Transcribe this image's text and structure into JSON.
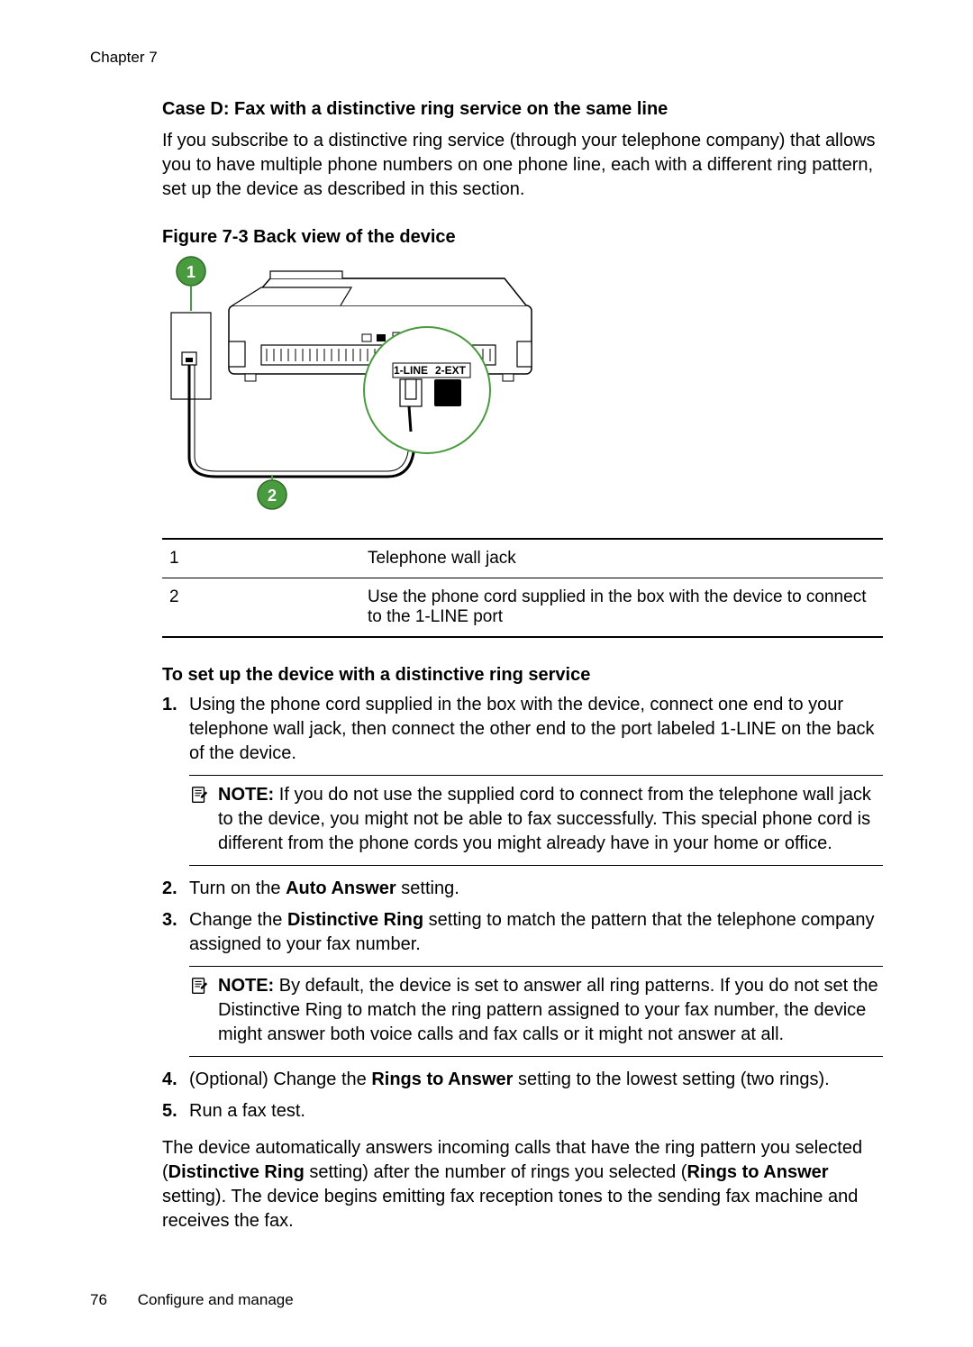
{
  "chapter_label": "Chapter 7",
  "heading": "Case D: Fax with a distinctive ring service on the same line",
  "intro_paragraph": "If you subscribe to a distinctive ring service (through your telephone company) that allows you to have multiple phone numbers on one phone line, each with a different ring pattern, set up the device as described in this section.",
  "figure": {
    "caption": "Figure 7-3 Back view of the device",
    "callouts": {
      "one": "1",
      "two": "2"
    },
    "port_labels": {
      "line": "1-LINE",
      "ext": "2-EXT"
    },
    "style": {
      "callout_fill": "#4a9b3f",
      "callout_stroke": "#2f6b28",
      "ring_stroke": "#4a9b3f",
      "device_stroke": "#000000",
      "bg": "#ffffff",
      "line_width_thin": 1.2,
      "line_width_outline": 3,
      "line_width_ring": 2
    }
  },
  "legend": {
    "rows": [
      {
        "num": "1",
        "text": "Telephone wall jack"
      },
      {
        "num": "2",
        "text": "Use the phone cord supplied in the box with the device to connect to the 1-LINE port"
      }
    ]
  },
  "setup_heading": "To set up the device with a distinctive ring service",
  "steps": [
    {
      "num": "1.",
      "segments": [
        {
          "t": "Using the phone cord supplied in the box with the device, connect one end to your telephone wall jack, then connect the other end to the port labeled 1-LINE on the back of the device."
        }
      ],
      "note": {
        "label": "NOTE:",
        "segments": [
          {
            "t": "  If you do not use the supplied cord to connect from the telephone wall jack to the device, you might not be able to fax successfully. This special phone cord is different from the phone cords you might already have in your home or office."
          }
        ]
      }
    },
    {
      "num": "2.",
      "segments": [
        {
          "t": "Turn on the "
        },
        {
          "t": "Auto Answer",
          "b": true
        },
        {
          "t": " setting."
        }
      ]
    },
    {
      "num": "3.",
      "segments": [
        {
          "t": "Change the "
        },
        {
          "t": "Distinctive Ring",
          "b": true
        },
        {
          "t": " setting to match the pattern that the telephone company assigned to your fax number."
        }
      ],
      "note": {
        "label": "NOTE:",
        "segments": [
          {
            "t": "  By default, the device is set to answer all ring patterns. If you do not set the "
          },
          {
            "t": "Distinctive Ring",
            "b": true
          },
          {
            "t": " to match the ring pattern assigned to your fax number, the device might answer both voice calls and fax calls or it might not answer at all."
          }
        ]
      }
    },
    {
      "num": "4.",
      "segments": [
        {
          "t": "(Optional) Change the "
        },
        {
          "t": "Rings to Answer",
          "b": true
        },
        {
          "t": " setting to the lowest setting (two rings)."
        }
      ]
    },
    {
      "num": "5.",
      "segments": [
        {
          "t": "Run a fax test."
        }
      ]
    }
  ],
  "closing_segments": [
    {
      "t": "The device automatically answers incoming calls that have the ring pattern you selected ("
    },
    {
      "t": "Distinctive Ring",
      "b": true
    },
    {
      "t": " setting) after the number of rings you selected ("
    },
    {
      "t": "Rings to Answer",
      "b": true
    },
    {
      "t": " setting). The device begins emitting fax reception tones to the sending fax machine and receives the fax."
    }
  ],
  "footer": {
    "page": "76",
    "section": "Configure and manage"
  }
}
